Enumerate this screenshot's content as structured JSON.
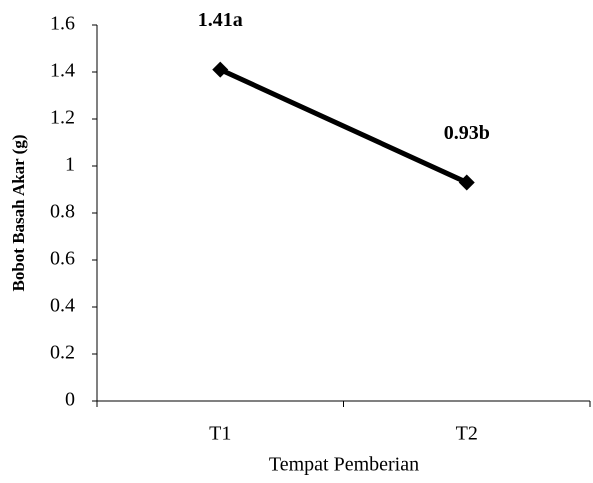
{
  "chart_data": {
    "type": "line",
    "categories": [
      "T1",
      "T2"
    ],
    "series": [
      {
        "name": null,
        "color": "#000000",
        "values": [
          1.41,
          0.93
        ],
        "value_labels": [
          "1.41a",
          "0.93b"
        ]
      }
    ],
    "ylim": [
      0,
      1.6
    ],
    "yticks": [
      0,
      0.2,
      0.4,
      0.6,
      0.8,
      1,
      1.2,
      1.4,
      1.6
    ],
    "x_label": "Tempat Pemberian",
    "y_label": "Bobot Basah Akar (g)",
    "grid": false
  }
}
